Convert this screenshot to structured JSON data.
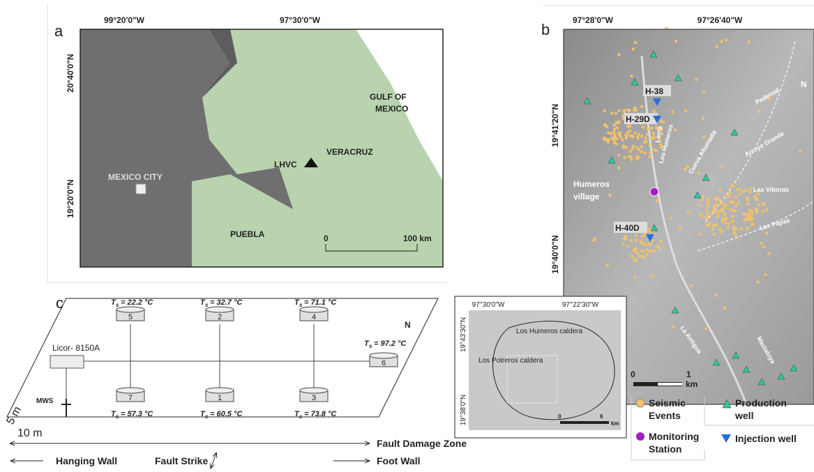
{
  "panel_a": {
    "label": "a",
    "lon_ticks": [
      "99°20'0\"W",
      "97°30'0\"W"
    ],
    "lat_ticks": [
      "20°40'0\"N",
      "19°20'0\"N"
    ],
    "places": {
      "gulf": [
        "GULF OF",
        "MEXICO"
      ],
      "city": "MEXICO CITY",
      "volcano": "LHVC",
      "veracruz": "VERACRUZ",
      "puebla": "PUEBLA"
    },
    "scale": [
      "0",
      "100 km"
    ]
  },
  "panel_b": {
    "label": "b",
    "lon_ticks": [
      "97°28'0\"W",
      "97°26'40\"W"
    ],
    "lat_ticks": [
      "19°41'20\"N",
      "19°40'0\"N"
    ],
    "wells": [
      "H-38",
      "H-29D",
      "H-40D"
    ],
    "village": [
      "Humeros",
      "village"
    ],
    "faults": [
      "Pedernal",
      "Arroyo Grande",
      "Las Viboras",
      "Las Papas",
      "Cueva Ahumada",
      "Los Humeros",
      "La Antigua",
      "Maztaloya",
      "Loma"
    ],
    "scale": [
      "0",
      "1",
      "km"
    ],
    "north": "N"
  },
  "inset": {
    "lon_ticks": [
      "97°30'0\"W",
      "97°22'30\"W"
    ],
    "lat_ticks": [
      "19°43'30\"N",
      "19°38'0\"N"
    ],
    "calderas": [
      "Los Humeros caldera",
      "Los Potreros caldera"
    ],
    "scale": [
      "0",
      "6",
      "km"
    ]
  },
  "legend": [
    {
      "lines": [
        "Seismic",
        "Events"
      ]
    },
    {
      "lines": [
        "Monitoring",
        "Station"
      ]
    },
    {
      "lines": [
        "Production",
        "well"
      ]
    },
    {
      "lines": [
        "Injection well"
      ]
    }
  ],
  "panel_c": {
    "label": "c",
    "symbol": "T",
    "subscript": "s",
    "chambers": [
      {
        "id": "5",
        "temp": "= 22.2 °C"
      },
      {
        "id": "2",
        "temp": "= 32.7 °C"
      },
      {
        "id": "4",
        "temp": "= 71.1 °C"
      },
      {
        "id": "6",
        "temp": "= 97.2 °C"
      },
      {
        "id": "7",
        "temp": "= 57.3 °C"
      },
      {
        "id": "1",
        "temp": "= 60.5 °C"
      },
      {
        "id": "3",
        "temp": "= 73.8 °C"
      }
    ],
    "instrument": "Licor- 8150A",
    "station": "MWS",
    "width": "10 m",
    "depth": "5 m",
    "north": "N",
    "zone": "Fault Damage Zone",
    "hanging": "Hanging Wall",
    "strike": "Fault Strike",
    "foot": "Foot Wall"
  }
}
